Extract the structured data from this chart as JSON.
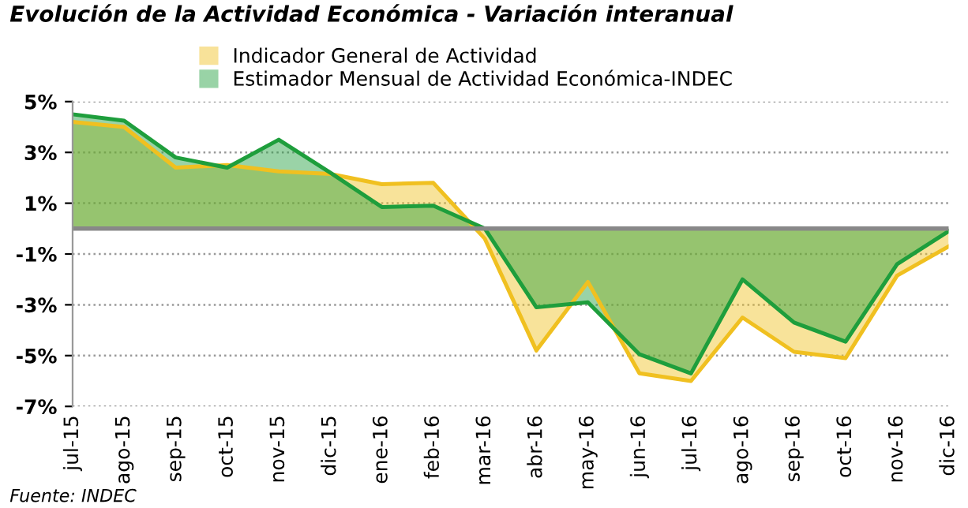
{
  "chart_data": {
    "type": "area",
    "title": "Evolución de la Actividad Económica - Variación interanual",
    "categories": [
      "jul-15",
      "ago-15",
      "sep-15",
      "oct-15",
      "nov-15",
      "dic-15",
      "ene-16",
      "feb-16",
      "mar-16",
      "abr-16",
      "may-16",
      "jun-16",
      "jul-16",
      "ago-16",
      "sep-16",
      "oct-16",
      "nov-16",
      "dic-16"
    ],
    "series": [
      {
        "name": "Indicador General de Actividad",
        "color": "#f0c020",
        "values": [
          4.2,
          4.0,
          2.4,
          2.5,
          2.25,
          2.15,
          1.75,
          1.8,
          -0.4,
          -4.8,
          -2.1,
          -5.7,
          -6.0,
          -3.5,
          -4.85,
          -5.1,
          -1.85,
          -0.7
        ]
      },
      {
        "name": "Estimador Mensual de Actividad Económica-INDEC",
        "color": "#1e9e3c",
        "values": [
          4.5,
          4.25,
          2.8,
          2.4,
          3.5,
          2.2,
          0.85,
          0.9,
          0.0,
          -3.1,
          -2.9,
          -4.95,
          -5.7,
          -2.0,
          -3.7,
          -4.45,
          -1.4,
          -0.1
        ]
      }
    ],
    "ylim": [
      -7,
      5
    ],
    "yticks": [
      {
        "value": 5,
        "label": "5%"
      },
      {
        "value": 3,
        "label": "3%"
      },
      {
        "value": 1,
        "label": "1%"
      },
      {
        "value": -1,
        "label": "-1%"
      },
      {
        "value": -3,
        "label": "-3%"
      },
      {
        "value": -5,
        "label": "-5%"
      },
      {
        "value": -7,
        "label": "-7%"
      }
    ],
    "grid": "y",
    "legend": "top",
    "annotations": [
      "Fuente: INDEC"
    ]
  }
}
